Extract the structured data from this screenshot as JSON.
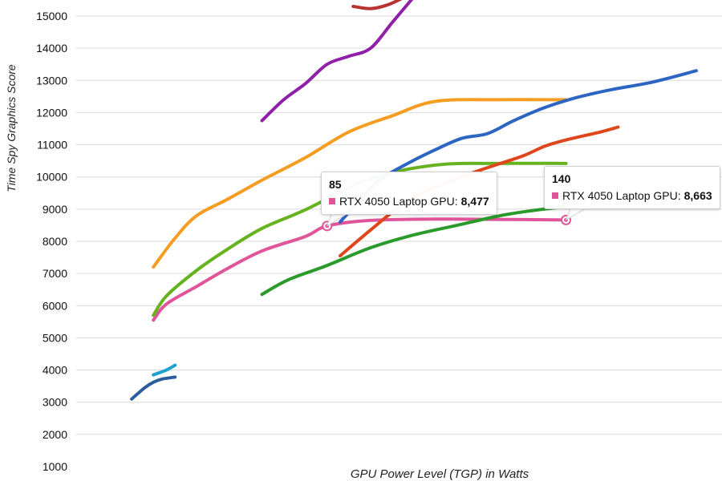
{
  "chart_data": {
    "type": "line",
    "title": "",
    "xlabel": "GPU Power Level (TGP) in Watts",
    "ylabel": "Time Spy Graphics Score",
    "xlim": [
      30,
      175
    ],
    "ylim": [
      1000,
      15000
    ],
    "yticks": [
      1000,
      2000,
      3000,
      4000,
      5000,
      6000,
      7000,
      8000,
      9000,
      10000,
      11000,
      12000,
      13000,
      14000,
      15000
    ],
    "grid": true,
    "legend": "none",
    "series": [
      {
        "color": "#2b5f9c",
        "points": [
          [
            40,
            3100
          ],
          [
            43,
            3450
          ],
          [
            45,
            3620
          ],
          [
            47,
            3720
          ],
          [
            50,
            3780
          ]
        ]
      },
      {
        "color": "#1ea0d0",
        "points": [
          [
            45,
            3850
          ],
          [
            48,
            4000
          ],
          [
            50,
            4150
          ]
        ]
      },
      {
        "color": "#e0559a",
        "points": [
          [
            45,
            5550
          ],
          [
            48,
            6050
          ],
          [
            55,
            6600
          ],
          [
            62,
            7150
          ],
          [
            70,
            7700
          ],
          [
            80,
            8150
          ],
          [
            85,
            8477
          ],
          [
            95,
            8650
          ],
          [
            110,
            8690
          ],
          [
            125,
            8680
          ],
          [
            140,
            8663
          ]
        ]
      },
      {
        "color": "#66b21f",
        "points": [
          [
            45,
            5700
          ],
          [
            48,
            6300
          ],
          [
            55,
            7100
          ],
          [
            62,
            7750
          ],
          [
            70,
            8400
          ],
          [
            80,
            8980
          ],
          [
            95,
            9950
          ],
          [
            110,
            10370
          ],
          [
            125,
            10420
          ],
          [
            140,
            10420
          ]
        ]
      },
      {
        "color": "#f59d22",
        "points": [
          [
            45,
            7200
          ],
          [
            50,
            8100
          ],
          [
            55,
            8800
          ],
          [
            62,
            9300
          ],
          [
            70,
            9900
          ],
          [
            80,
            10600
          ],
          [
            90,
            11400
          ],
          [
            100,
            11900
          ],
          [
            110,
            12350
          ],
          [
            125,
            12400
          ],
          [
            140,
            12400
          ]
        ]
      },
      {
        "color": "#8f20a8",
        "points": [
          [
            70,
            11750
          ],
          [
            75,
            12400
          ],
          [
            80,
            12900
          ],
          [
            85,
            13500
          ],
          [
            90,
            13750
          ],
          [
            95,
            14000
          ],
          [
            100,
            14800
          ],
          [
            105,
            15600
          ]
        ]
      },
      {
        "color": "#b93232",
        "points": [
          [
            91,
            15300
          ],
          [
            95,
            15230
          ],
          [
            99,
            15350
          ],
          [
            103,
            15600
          ]
        ]
      },
      {
        "color": "#2c66c2",
        "points": [
          [
            88,
            8600
          ],
          [
            92,
            9200
          ],
          [
            97,
            9900
          ],
          [
            104,
            10450
          ],
          [
            110,
            10850
          ],
          [
            116,
            11200
          ],
          [
            122,
            11350
          ],
          [
            128,
            11750
          ],
          [
            135,
            12150
          ],
          [
            142,
            12450
          ],
          [
            150,
            12700
          ],
          [
            160,
            12950
          ],
          [
            170,
            13300
          ]
        ]
      },
      {
        "color": "#e0461c",
        "points": [
          [
            88,
            7550
          ],
          [
            95,
            8350
          ],
          [
            102,
            9100
          ],
          [
            110,
            9700
          ],
          [
            120,
            10200
          ],
          [
            130,
            10650
          ],
          [
            135,
            10950
          ],
          [
            140,
            11150
          ],
          [
            148,
            11400
          ],
          [
            152,
            11550
          ]
        ]
      },
      {
        "color": "#2a9a2a",
        "points": [
          [
            70,
            6350
          ],
          [
            76,
            6800
          ],
          [
            85,
            7250
          ],
          [
            95,
            7800
          ],
          [
            105,
            8200
          ],
          [
            115,
            8500
          ],
          [
            125,
            8800
          ],
          [
            132,
            8950
          ],
          [
            140,
            9080
          ]
        ]
      }
    ],
    "tooltips": [
      {
        "x": 85,
        "y": 8477,
        "title": "85",
        "label": "RTX 4050 Laptop GPU:",
        "value": "8,477",
        "color": "#e0559a"
      },
      {
        "x": 140,
        "y": 8663,
        "title": "140",
        "label": "RTX 4050 Laptop GPU:",
        "value": "8,663",
        "color": "#e0559a"
      }
    ]
  },
  "tooltip1": {
    "title": "85",
    "label": "RTX 4050 Laptop GPU:",
    "value": "8,477"
  },
  "tooltip2": {
    "title": "140",
    "label": "RTX 4050 Laptop GPU:",
    "value": "8,663"
  }
}
